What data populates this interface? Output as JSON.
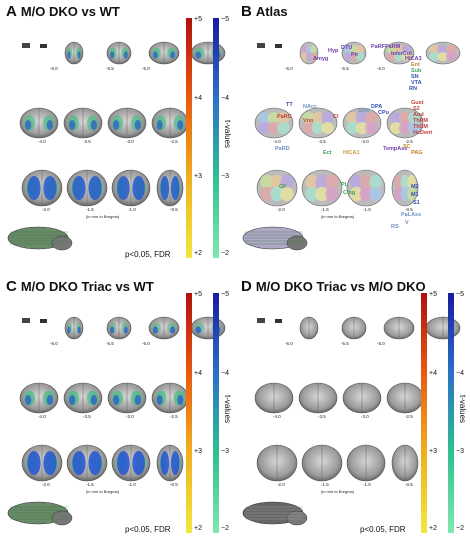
{
  "panels": [
    {
      "letter": "A",
      "title": "M/O DKO vs WT",
      "type": "ko",
      "pvalue": "p<0.05, FDR"
    },
    {
      "letter": "B",
      "title": "Atlas",
      "type": "atlas",
      "pvalue": ""
    },
    {
      "letter": "C",
      "title": "M/O DKO Triac vs WT",
      "type": "triac",
      "pvalue": "p<0.05, FDR"
    },
    {
      "letter": "D",
      "title": "M/O DKO Triac vs M/O DKO",
      "type": "none",
      "pvalue": "p<0.05, FDR"
    }
  ],
  "colorbar": {
    "pos_ticks": [
      "+5",
      "+4",
      "+3",
      "+2"
    ],
    "neg_ticks": [
      "−5",
      "−4",
      "−3",
      "−2"
    ],
    "label": "t-values",
    "pos_colors": [
      "#b01010",
      "#e85a10",
      "#f0b020",
      "#f2e640"
    ],
    "neg_colors": [
      "#1a1aa0",
      "#2a70c8",
      "#30c090",
      "#80e8b0"
    ]
  },
  "slice_labels": {
    "row1": [
      "-6.0",
      "-5.5",
      "-5.0"
    ],
    "row2": [
      "-4.0",
      "-3.5",
      "-3.0",
      "-2.5"
    ],
    "row3": [
      "-2.0",
      "-1.5",
      "-1.0",
      "-0.5"
    ],
    "axis_note": "(in mm to Bregma)"
  },
  "atlas_labels": [
    {
      "t": "Amyg",
      "c": "#7040b0"
    },
    {
      "t": "Hyp",
      "c": "#7040b0"
    },
    {
      "t": "DTU",
      "c": "#7040b0"
    },
    {
      "t": "Pir",
      "c": "#7040b0"
    },
    {
      "t": "PaRF",
      "c": "#7040b0"
    },
    {
      "t": "PaRM",
      "c": "#7040b0"
    },
    {
      "t": "InferCol",
      "c": "#7040b0"
    },
    {
      "t": "HiCA3",
      "c": "#7040b0"
    },
    {
      "t": "Ent",
      "c": "#c08040"
    },
    {
      "t": "Sub",
      "c": "#40a060"
    },
    {
      "t": "SN",
      "c": "#3050b0"
    },
    {
      "t": "VTA",
      "c": "#3050b0"
    },
    {
      "t": "RN",
      "c": "#3050b0"
    },
    {
      "t": "TT",
      "c": "#3050b0"
    },
    {
      "t": "NAcc",
      "c": "#7090c0"
    },
    {
      "t": "PaRC",
      "c": "#c04040"
    },
    {
      "t": "Vno",
      "c": "#c04040"
    },
    {
      "t": "Cl",
      "c": "#c04040"
    },
    {
      "t": "Sept",
      "c": "#7090c0"
    },
    {
      "t": "DPA",
      "c": "#3050b0"
    },
    {
      "t": "CPu",
      "c": "#3050b0"
    },
    {
      "t": "Gust",
      "c": "#c04040"
    },
    {
      "t": "S2",
      "c": "#c04040"
    },
    {
      "t": "Aud",
      "c": "#c04040"
    },
    {
      "t": "ThPM",
      "c": "#c04040"
    },
    {
      "t": "ThSM",
      "c": "#c04040"
    },
    {
      "t": "HcDent",
      "c": "#c04040"
    },
    {
      "t": "PaRD",
      "c": "#7090c0"
    },
    {
      "t": "Ect",
      "c": "#40a060"
    },
    {
      "t": "HiCA1",
      "c": "#c0a040"
    },
    {
      "t": "TempAss",
      "c": "#7040b0"
    },
    {
      "t": "SC",
      "c": "#c08020"
    },
    {
      "t": "PAG",
      "c": "#c08020"
    },
    {
      "t": "OF",
      "c": "#40a060"
    },
    {
      "t": "PL",
      "c": "#40a060"
    },
    {
      "t": "Cing",
      "c": "#40a060"
    },
    {
      "t": "M2",
      "c": "#3050b0"
    },
    {
      "t": "M1",
      "c": "#3050b0"
    },
    {
      "t": "S1",
      "c": "#3050b0"
    },
    {
      "t": "PaLAss",
      "c": "#7090c0"
    },
    {
      "t": "V",
      "c": "#7090c0"
    },
    {
      "t": "RS",
      "c": "#7090c0"
    }
  ]
}
